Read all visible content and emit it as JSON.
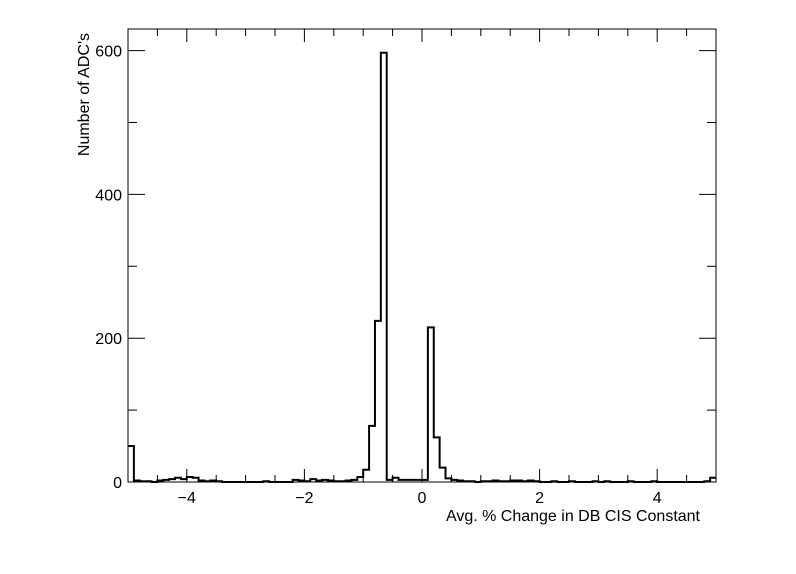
{
  "chart_data": {
    "type": "histogram",
    "title": "",
    "xlabel": "Avg. % Change in DB CIS Constant",
    "ylabel": "Number of ADC's",
    "xlim": [
      -5,
      5
    ],
    "ylim": [
      0,
      630
    ],
    "x_ticks": [
      -4,
      -2,
      0,
      2,
      4
    ],
    "x_tick_labels": [
      "−4",
      "−2",
      "0",
      "2",
      "4"
    ],
    "y_ticks": [
      0,
      200,
      400,
      600
    ],
    "y_tick_labels": [
      "0",
      "200",
      "400",
      "600"
    ],
    "grid": false,
    "legend": "none",
    "bin_width": 0.1,
    "x": [
      -4.95,
      -4.85,
      -4.75,
      -4.65,
      -4.55,
      -4.45,
      -4.35,
      -4.25,
      -4.15,
      -4.05,
      -3.95,
      -3.85,
      -3.75,
      -3.65,
      -3.55,
      -3.45,
      -3.35,
      -3.25,
      -3.15,
      -3.05,
      -2.95,
      -2.85,
      -2.75,
      -2.65,
      -2.55,
      -2.45,
      -2.35,
      -2.25,
      -2.15,
      -2.05,
      -1.95,
      -1.85,
      -1.75,
      -1.65,
      -1.55,
      -1.45,
      -1.35,
      -1.25,
      -1.15,
      -1.05,
      -0.95,
      -0.85,
      -0.75,
      -0.65,
      -0.55,
      -0.45,
      -0.35,
      -0.25,
      -0.15,
      -0.05,
      0.05,
      0.15,
      0.25,
      0.35,
      0.45,
      0.55,
      0.65,
      0.75,
      0.85,
      0.95,
      1.05,
      1.15,
      1.25,
      1.35,
      1.45,
      1.55,
      1.65,
      1.75,
      1.85,
      1.95,
      2.05,
      2.15,
      2.25,
      2.35,
      2.45,
      2.55,
      2.65,
      2.75,
      2.85,
      2.95,
      3.05,
      3.15,
      3.25,
      3.35,
      3.45,
      3.55,
      3.65,
      3.75,
      3.85,
      3.95,
      4.05,
      4.15,
      4.25,
      4.35,
      4.45,
      4.55,
      4.65,
      4.75,
      4.85,
      4.95
    ],
    "values": [
      50,
      2,
      1,
      1,
      0,
      2,
      3,
      4,
      6,
      4,
      7,
      6,
      2,
      1,
      2,
      1,
      0,
      0,
      0,
      0,
      0,
      0,
      0,
      1,
      0,
      0,
      0,
      0,
      3,
      2,
      1,
      4,
      2,
      3,
      2,
      1,
      1,
      2,
      3,
      7,
      17,
      78,
      224,
      597,
      3,
      6,
      3,
      3,
      3,
      3,
      3,
      215,
      62,
      20,
      5,
      3,
      2,
      1,
      1,
      0,
      1,
      1,
      2,
      1,
      1,
      2,
      2,
      1,
      2,
      1,
      0,
      0,
      1,
      0,
      0,
      1,
      0,
      0,
      0,
      1,
      0,
      1,
      0,
      0,
      0,
      1,
      0,
      0,
      0,
      1,
      0,
      0,
      0,
      0,
      0,
      0,
      0,
      0,
      1,
      6
    ]
  }
}
